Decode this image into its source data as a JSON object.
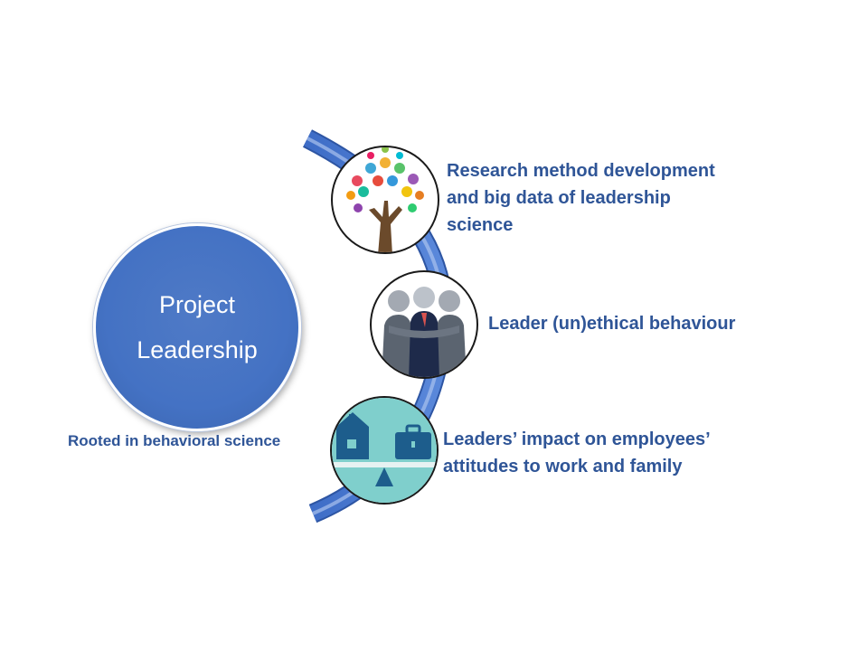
{
  "main": {
    "title_line1": "Project",
    "title_line2": "Leadership",
    "subtitle": "Rooted in behavioral science"
  },
  "items": [
    {
      "line1": "Research method development",
      "line2": "and big data of leadership",
      "line3": "science",
      "icon": "tree-of-hands-icon"
    },
    {
      "line1": "Leader (un)ethical behaviour",
      "icon": "team-huddle-icon"
    },
    {
      "line1": "Leaders’ impact on employees’",
      "line2": "attitudes to work and family",
      "icon": "work-life-balance-icon"
    }
  ],
  "colors": {
    "primary": "#4472c4",
    "text": "#2f5597",
    "arc": "#4a78d0"
  }
}
